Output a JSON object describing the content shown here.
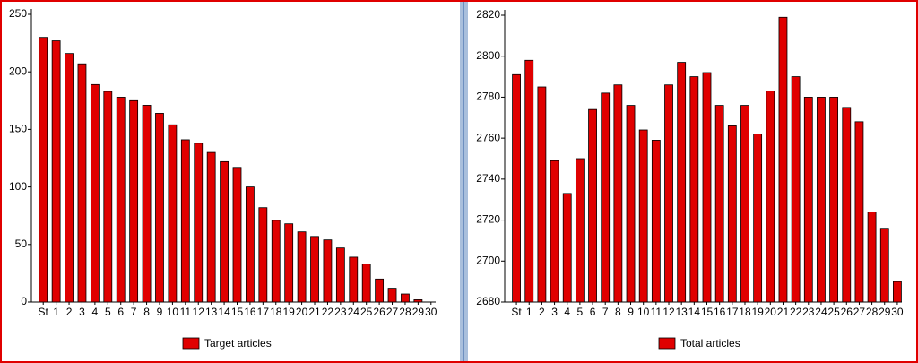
{
  "chart_data": [
    {
      "type": "bar",
      "categories": [
        "St",
        "1",
        "2",
        "3",
        "4",
        "5",
        "6",
        "7",
        "8",
        "9",
        "10",
        "11",
        "12",
        "13",
        "14",
        "15",
        "16",
        "17",
        "18",
        "19",
        "20",
        "21",
        "22",
        "23",
        "24",
        "25",
        "26",
        "27",
        "28",
        "29",
        "30"
      ],
      "series": [
        {
          "name": "Target articles",
          "color": "#e00000",
          "values": [
            230,
            227,
            216,
            207,
            189,
            183,
            178,
            175,
            171,
            164,
            154,
            141,
            138,
            130,
            122,
            117,
            100,
            82,
            71,
            68,
            61,
            57,
            54,
            47,
            39,
            33,
            20,
            12,
            7,
            2,
            0
          ]
        }
      ],
      "ylim": [
        0,
        250
      ],
      "yticks": [
        0,
        50,
        100,
        150,
        200,
        250
      ]
    },
    {
      "type": "bar",
      "categories": [
        "St",
        "1",
        "2",
        "3",
        "4",
        "5",
        "6",
        "7",
        "8",
        "9",
        "10",
        "11",
        "12",
        "13",
        "14",
        "15",
        "16",
        "17",
        "18",
        "19",
        "20",
        "21",
        "22",
        "23",
        "24",
        "25",
        "26",
        "27",
        "28",
        "29",
        "30"
      ],
      "series": [
        {
          "name": "Total articles",
          "color": "#e00000",
          "values": [
            2791,
            2798,
            2785,
            2749,
            2733,
            2750,
            2774,
            2782,
            2786,
            2776,
            2764,
            2759,
            2786,
            2797,
            2790,
            2792,
            2776,
            2766,
            2776,
            2762,
            2783,
            2819,
            2790,
            2780,
            2780,
            2780,
            2775,
            2768,
            2724,
            2716,
            2690
          ]
        }
      ],
      "ylim": [
        2680,
        2820
      ],
      "yticks": [
        2680,
        2700,
        2720,
        2740,
        2760,
        2780,
        2800,
        2820
      ]
    }
  ]
}
